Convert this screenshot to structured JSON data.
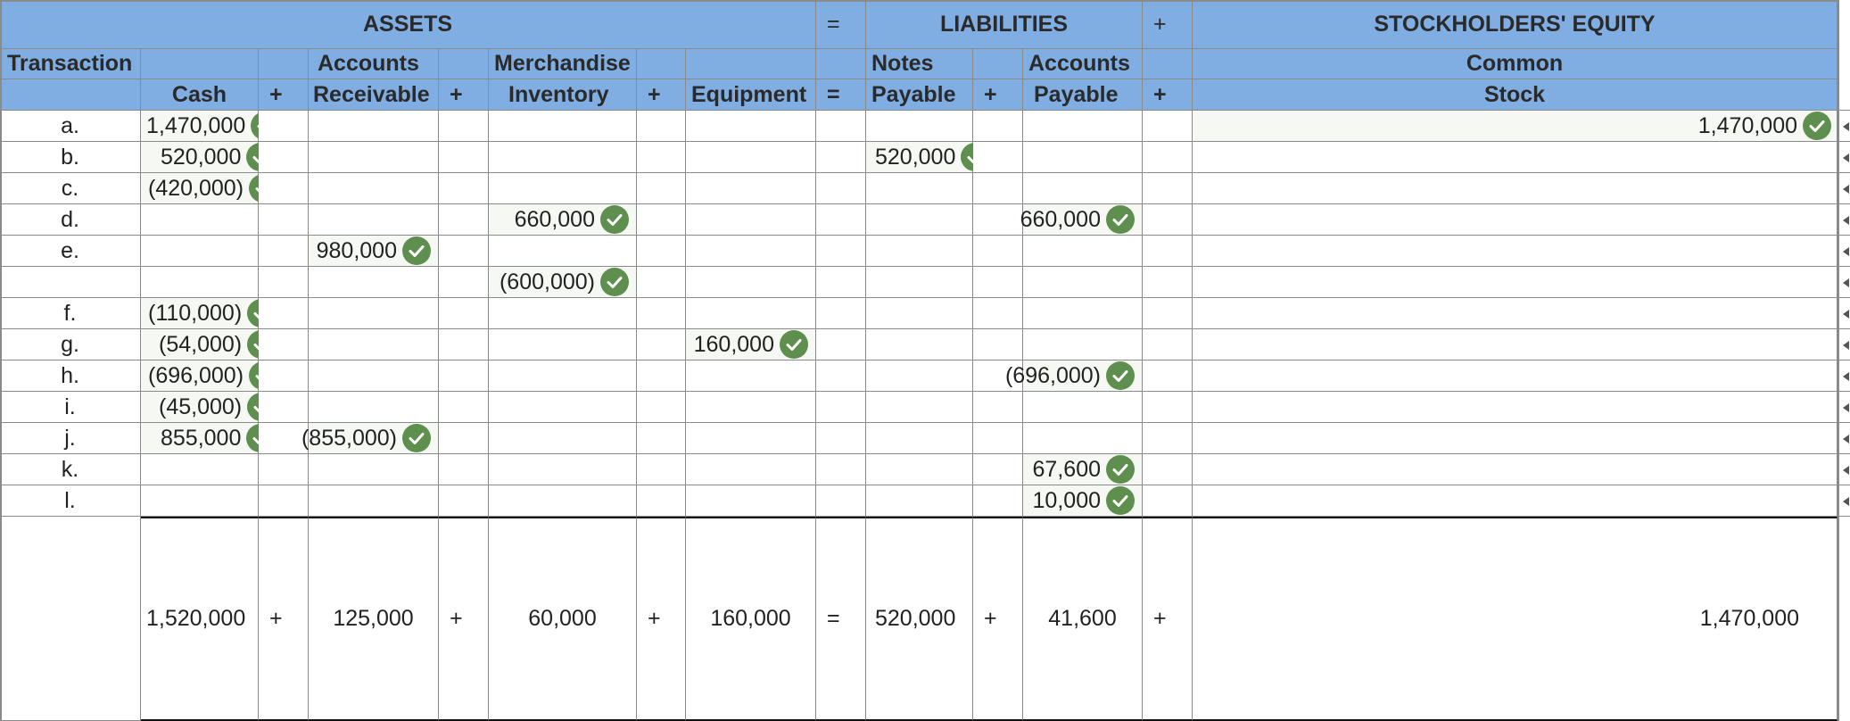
{
  "headers": {
    "assets": "ASSETS",
    "eq_top": "=",
    "liabilities": "LIABILITIES",
    "plus_top": "+",
    "stockholders_equity": "STOCKHOLDERS' EQUITY",
    "row2": [
      "Transaction",
      "",
      "",
      "Accounts",
      "",
      "Merchandise",
      "",
      "",
      "",
      "Notes",
      "",
      "Accounts",
      "",
      "Common"
    ],
    "row3": [
      "",
      "Cash",
      "+",
      "Receivable",
      "+",
      "Inventory",
      "+",
      "Equipment",
      "=",
      "Payable",
      "+",
      "Payable",
      "+",
      "Stock"
    ]
  },
  "rows": [
    {
      "label": "a.",
      "cash": "1,470,000",
      "ar": "",
      "inv": "",
      "equip": "",
      "np": "",
      "ap": "",
      "cs": "1,470,000"
    },
    {
      "label": "b.",
      "cash": "520,000",
      "ar": "",
      "inv": "",
      "equip": "",
      "np": "520,000",
      "ap": "",
      "cs": ""
    },
    {
      "label": "c.",
      "cash": "(420,000)",
      "ar": "",
      "inv": "",
      "equip": "",
      "np": "",
      "ap": "",
      "cs": ""
    },
    {
      "label": "d.",
      "cash": "",
      "ar": "",
      "inv": "660,000",
      "equip": "",
      "np": "",
      "ap": "660,000",
      "cs": ""
    },
    {
      "label": "e.",
      "cash": "",
      "ar": "980,000",
      "inv": "",
      "equip": "",
      "np": "",
      "ap": "",
      "cs": ""
    },
    {
      "label": "",
      "cash": "",
      "ar": "",
      "inv": "(600,000)",
      "equip": "",
      "np": "",
      "ap": "",
      "cs": ""
    },
    {
      "label": "f.",
      "cash": "(110,000)",
      "ar": "",
      "inv": "",
      "equip": "",
      "np": "",
      "ap": "",
      "cs": ""
    },
    {
      "label": "g.",
      "cash": "(54,000)",
      "ar": "",
      "inv": "",
      "equip": "160,000",
      "np": "",
      "ap": "",
      "cs": ""
    },
    {
      "label": "h.",
      "cash": "(696,000)",
      "ar": "",
      "inv": "",
      "equip": "",
      "np": "",
      "ap": "(696,000)",
      "cs": ""
    },
    {
      "label": "i.",
      "cash": "(45,000)",
      "ar": "",
      "inv": "",
      "equip": "",
      "np": "",
      "ap": "",
      "cs": ""
    },
    {
      "label": "j.",
      "cash": "855,000",
      "ar": "(855,000)",
      "inv": "",
      "equip": "",
      "np": "",
      "ap": "",
      "cs": ""
    },
    {
      "label": "k.",
      "cash": "",
      "ar": "",
      "inv": "",
      "equip": "",
      "np": "",
      "ap": "67,600",
      "cs": ""
    },
    {
      "label": "l.",
      "cash": "",
      "ar": "",
      "inv": "",
      "equip": "",
      "np": "",
      "ap": "10,000",
      "cs": ""
    }
  ],
  "totals": {
    "cash": "1,520,000",
    "op1": "+",
    "ar": "125,000",
    "op2": "+",
    "inv": "60,000",
    "op3": "+",
    "equip": "160,000",
    "eq": "=",
    "np": "520,000",
    "op4": "+",
    "ap": "41,600",
    "op5": "+",
    "cs": "1,470,000"
  },
  "colors": {
    "header_bg": "#80aee3",
    "check_green": "#5e8f4f",
    "filled_bg": "#f6f8f3",
    "grid": "#8a8a8a"
  },
  "icons": {
    "correct": "check-circle-icon",
    "edge": "left-arrow-icon"
  }
}
